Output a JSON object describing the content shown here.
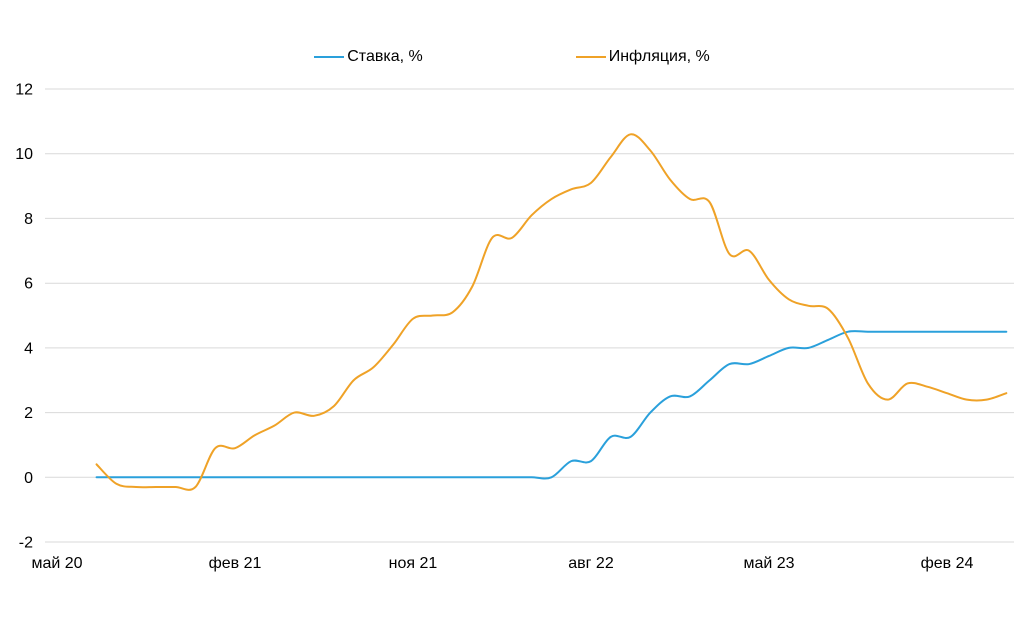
{
  "chart_data": {
    "type": "line",
    "title": "",
    "grid": true,
    "legend_position": "top-center",
    "background": "#ffffff",
    "gridline_color": "#d9d9d9",
    "text_color": "#000000",
    "x_axis": {
      "tick_labels": [
        "май 20",
        "фев 21",
        "ноя 21",
        "авг 22",
        "май 23",
        "фев 24"
      ],
      "tick_month_offsets": [
        0,
        9,
        18,
        27,
        36,
        45
      ]
    },
    "y_axis": {
      "ticks": [
        -2,
        0,
        2,
        4,
        6,
        8,
        10,
        12
      ],
      "range": [
        -2,
        12
      ]
    },
    "series": [
      {
        "name": "Ставка, %",
        "color": "#2AA0DB",
        "start_month_offset": 2,
        "values": [
          0,
          0,
          0,
          0,
          0,
          0,
          0,
          0,
          0,
          0,
          0,
          0,
          0,
          0,
          0,
          0,
          0,
          0,
          0,
          0,
          0,
          0,
          0,
          0,
          0.5,
          0.5,
          1.25,
          1.25,
          2.0,
          2.5,
          2.5,
          3.0,
          3.5,
          3.5,
          3.75,
          4.0,
          4.0,
          4.25,
          4.5,
          4.5,
          4.5,
          4.5,
          4.5,
          4.5,
          4.5,
          4.5,
          4.5
        ]
      },
      {
        "name": "Инфляция, %",
        "color": "#EFA227",
        "start_month_offset": 2,
        "values": [
          0.4,
          -0.2,
          -0.3,
          -0.3,
          -0.3,
          -0.3,
          0.9,
          0.9,
          1.3,
          1.6,
          2.0,
          1.9,
          2.2,
          3.0,
          3.4,
          4.1,
          4.9,
          5.0,
          5.1,
          5.9,
          7.4,
          7.4,
          8.1,
          8.6,
          8.9,
          9.1,
          9.9,
          10.6,
          10.1,
          9.2,
          8.6,
          8.5,
          6.9,
          7.0,
          6.1,
          5.5,
          5.3,
          5.2,
          4.3,
          2.9,
          2.4,
          2.9,
          2.8,
          2.6,
          2.4,
          2.4,
          2.6
        ]
      }
    ]
  }
}
